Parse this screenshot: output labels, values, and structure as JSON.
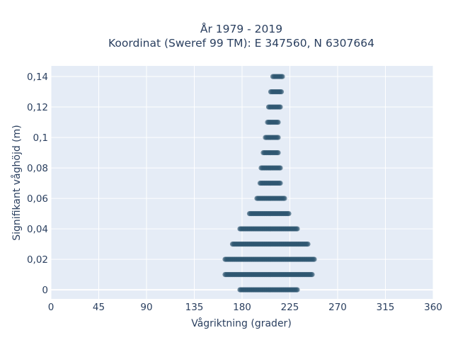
{
  "chart_data": {
    "type": "scatter",
    "title_lines": [
      "År 1979 - 2019",
      "Koordinat (Sweref 99 TM): E 347560, N 6307664"
    ],
    "xlabel": "Vågriktning (grader)",
    "ylabel": "Signifikant våghöjd (m)",
    "xlim": [
      0,
      360
    ],
    "ylim": [
      -0.006,
      0.147
    ],
    "xticks": [
      0,
      45,
      90,
      135,
      180,
      225,
      270,
      315,
      360
    ],
    "xtick_labels": [
      "0",
      "45",
      "90",
      "135",
      "180",
      "225",
      "270",
      "315",
      "360"
    ],
    "yticks": [
      0,
      0.02,
      0.04,
      0.06,
      0.08,
      0.1,
      0.12,
      0.14
    ],
    "ytick_labels": [
      "0",
      "0,02",
      "0,04",
      "0,06",
      "0,08",
      "0,1",
      "0,12",
      "0,14"
    ],
    "grid": true,
    "marker_color": "#2e5670",
    "background_color": "#e5ecf6",
    "points_by_height": [
      {
        "y": 0.0,
        "x_min": 178,
        "x_max": 232
      },
      {
        "y": 0.01,
        "x_min": 164,
        "x_max": 246
      },
      {
        "y": 0.02,
        "x_min": 164,
        "x_max": 248
      },
      {
        "y": 0.03,
        "x_min": 171,
        "x_max": 242
      },
      {
        "y": 0.04,
        "x_min": 178,
        "x_max": 232
      },
      {
        "y": 0.05,
        "x_min": 187,
        "x_max": 224
      },
      {
        "y": 0.06,
        "x_min": 194,
        "x_max": 220
      },
      {
        "y": 0.07,
        "x_min": 197,
        "x_max": 216
      },
      {
        "y": 0.08,
        "x_min": 198,
        "x_max": 216
      },
      {
        "y": 0.09,
        "x_min": 200,
        "x_max": 214
      },
      {
        "y": 0.1,
        "x_min": 202,
        "x_max": 214
      },
      {
        "y": 0.11,
        "x_min": 204,
        "x_max": 214
      },
      {
        "y": 0.12,
        "x_min": 205,
        "x_max": 216
      },
      {
        "y": 0.13,
        "x_min": 207,
        "x_max": 217
      },
      {
        "y": 0.14,
        "x_min": 209,
        "x_max": 218
      }
    ]
  }
}
